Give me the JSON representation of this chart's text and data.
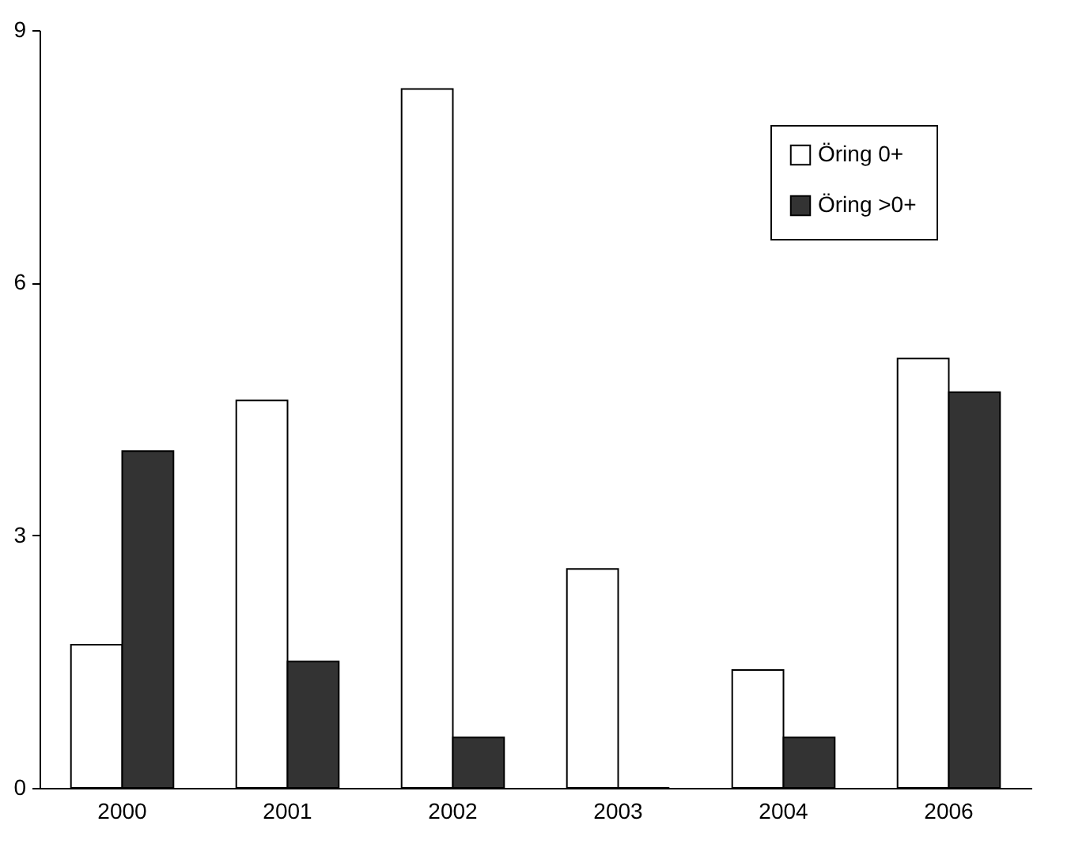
{
  "chart_data": {
    "type": "bar",
    "categories": [
      "2000",
      "2001",
      "2002",
      "2003",
      "2004",
      "2006"
    ],
    "series": [
      {
        "name": "Öring 0+",
        "color": "#ffffff",
        "values": [
          1.7,
          4.6,
          8.3,
          2.6,
          1.4,
          5.1
        ]
      },
      {
        "name": "Öring >0+",
        "color": "#333333",
        "values": [
          4.0,
          1.5,
          0.6,
          0,
          0.6,
          4.7
        ]
      }
    ],
    "ylim": [
      0,
      9
    ],
    "yticks": [
      0,
      3,
      6,
      9
    ],
    "grid": false,
    "legend": "top right"
  }
}
